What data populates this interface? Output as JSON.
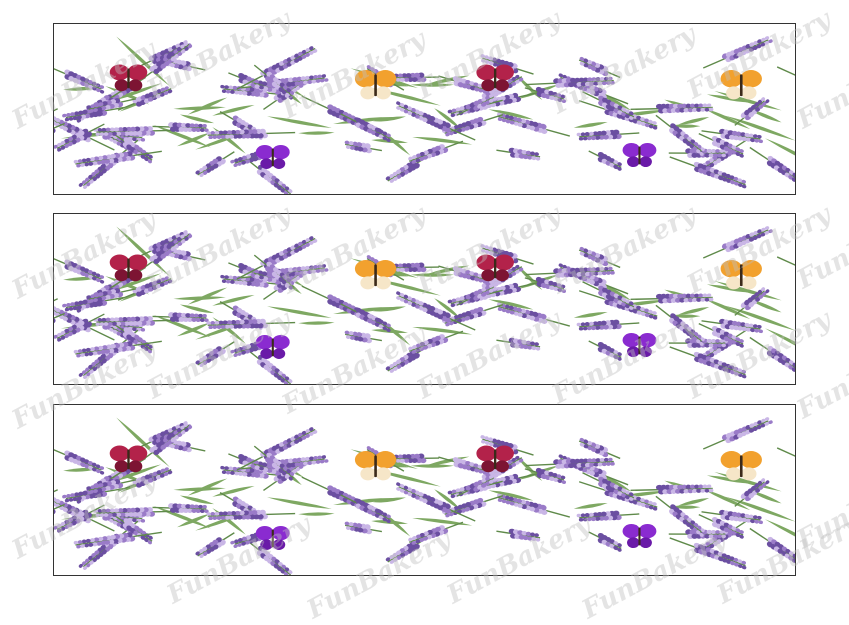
{
  "page": {
    "background": "#ffffff"
  },
  "watermark": {
    "text": "FunBakery",
    "color": "rgba(190,190,190,0.42)"
  },
  "strips": [
    {
      "id": "strip-1"
    },
    {
      "id": "strip-2"
    },
    {
      "id": "strip-3"
    }
  ],
  "palette": {
    "lavender_dark": "#6b4fa1",
    "lavender_mid": "#9a7bc8",
    "lavender_light": "#c9b6e6",
    "stem_green": "#5f8a4a",
    "leaf_green": "#7ea862",
    "butterfly_red": "#b3224a",
    "butterfly_orange": "#f2a12e",
    "butterfly_purple": "#8a2bd0"
  },
  "icons": [
    "lavender-sprig-icon",
    "red-butterfly-icon",
    "orange-butterfly-icon",
    "purple-butterfly-icon"
  ]
}
